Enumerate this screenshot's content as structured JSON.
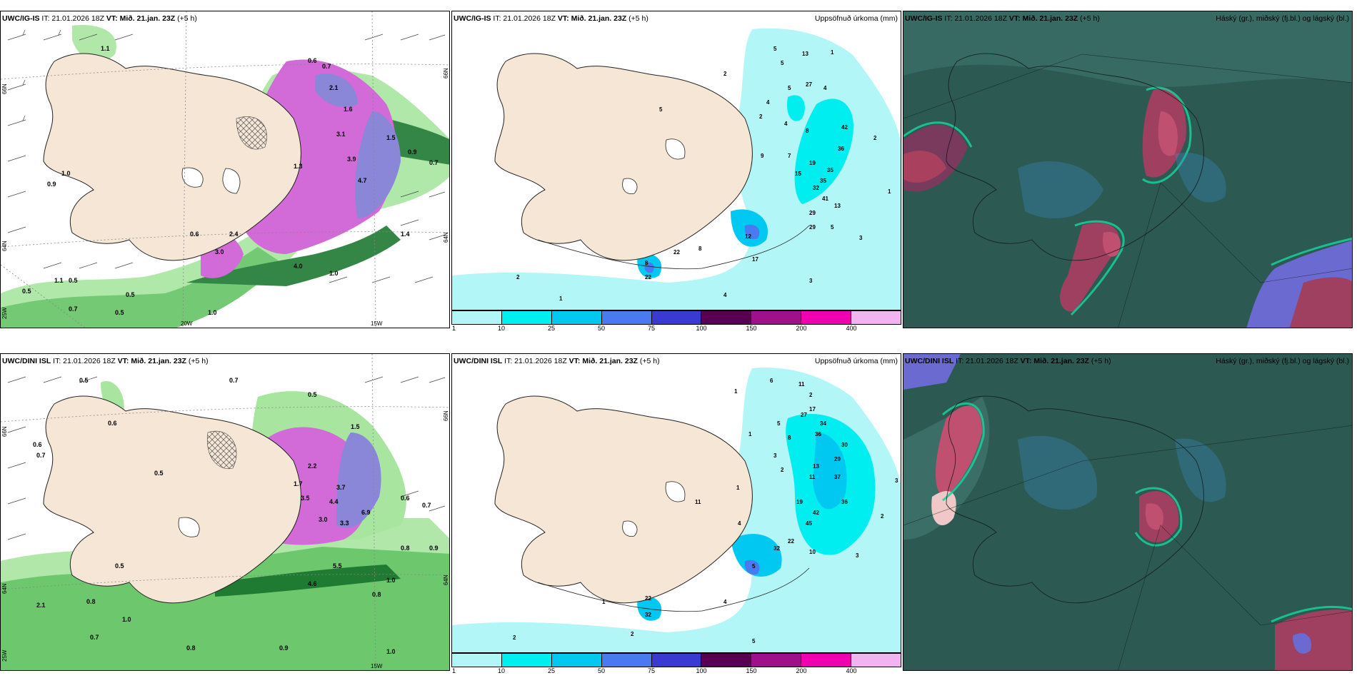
{
  "panels": [
    {
      "model": "UWC/IG-IS",
      "it": "IT: 21.01.2026 18Z",
      "vt_label": "VT:",
      "vt": "Mið. 21.jan. 23Z",
      "offset": "(+5 h)",
      "title_right": ""
    },
    {
      "model": "UWC/IG-IS",
      "it": "IT: 21.01.2026 18Z",
      "vt_label": "VT:",
      "vt": "Mið. 21.jan. 23Z",
      "offset": "(+5 h)",
      "title_right": "Uppsöfnuð úrkoma (mm)"
    },
    {
      "model": "UWC/IG-IS",
      "it": "IT: 21.01.2026 18Z",
      "vt_label": "VT:",
      "vt": "Mið. 21.jan. 23Z",
      "offset": "(+5 h)",
      "title_right": "Háský (gr.), miðský (fj.bl.) og lágský (bl.)"
    },
    {
      "model": "UWC/DINI ISL",
      "it": "IT: 21.01.2026 18Z",
      "vt_label": "VT:",
      "vt": "Mið. 21.jan. 23Z",
      "offset": "(+5 h)",
      "title_right": ""
    },
    {
      "model": "UWC/DINI ISL",
      "it": "IT: 21.01.2026 18Z",
      "vt_label": "VT:",
      "vt": "Mið. 21.jan. 23Z",
      "offset": "(+5 h)",
      "title_right": "Uppsöfnuð úrkoma (mm)"
    },
    {
      "model": "UWC/DINI ISL",
      "it": "IT: 21.01.2026 18Z",
      "vt_label": "VT:",
      "vt": "Mið. 21.jan. 23Z",
      "offset": "(+5 h)",
      "title_right": "Háský (gr.), miðský (fj.bl.) og lágský (bl.)"
    }
  ],
  "colorbar": {
    "ticks": [
      "1",
      "10",
      "25",
      "50",
      "75",
      "100",
      "150",
      "200",
      "400"
    ],
    "colors": [
      "#b3f6f8",
      "#00eef0",
      "#00c8f0",
      "#4a7af0",
      "#3a3ad0",
      "#5a0050",
      "#a0108c",
      "#f000b0",
      "#f0b4f0"
    ]
  },
  "grid_labels": {
    "top_left": {
      "lat66": "66N",
      "lat64": "64N",
      "lon25": "25W",
      "lon20": "20W",
      "lon15": "15W",
      "lat66r": "66N",
      "lat64r": "64N"
    },
    "bottom_left": {
      "lat66": "66N",
      "lat64": "64N",
      "lon25": "25W",
      "lon15": "15W",
      "lat66r": "66N",
      "lat64r": "64N"
    }
  },
  "values": {
    "p1": [
      "0.6",
      "0.7",
      "0.8",
      "0.9",
      "1.1",
      "1.0",
      "0.5",
      "0.6",
      "0.5",
      "0.7",
      "0.8",
      "0.9",
      "1.3",
      "1.6",
      "2.1",
      "3.1",
      "3.9",
      "4.7",
      "1.5",
      "1.8",
      "0.5",
      "1.0",
      "1.0",
      "0.9",
      "0.8",
      "1.1",
      "1.4",
      "0.6",
      "2.4",
      "3.0",
      "4.0",
      "1.0",
      "0.5",
      "0.7",
      "1.1"
    ],
    "p2": [
      "13",
      "5",
      "1",
      "5",
      "2",
      "5",
      "4",
      "27",
      "4",
      "2",
      "3",
      "5",
      "4",
      "8",
      "4",
      "3",
      "42",
      "36",
      "35",
      "2",
      "9",
      "7",
      "15",
      "19",
      "35",
      "32",
      "41",
      "1",
      "29",
      "13",
      "5",
      "12",
      "8",
      "22",
      "17",
      "3",
      "2",
      "4",
      "2",
      "1",
      "5"
    ],
    "p4": [
      "0.5",
      "0.7",
      "0.6",
      "1.0",
      "0.8",
      "0.9",
      "1.5",
      "2.2",
      "3.7",
      "4.4",
      "3.5",
      "5.5",
      "4.6",
      "0.5",
      "0.6",
      "0.8",
      "0.9",
      "1.0",
      "0.7",
      "0.6",
      "2.1",
      "1.0",
      "0.8",
      "0.5",
      "1.7",
      "3.0",
      "3.3",
      "6.9",
      "0.7"
    ],
    "p5": [
      "6",
      "11",
      "2",
      "1",
      "17",
      "27",
      "34",
      "36",
      "30",
      "29",
      "8",
      "1",
      "5",
      "3",
      "2",
      "13",
      "11",
      "19",
      "37",
      "36",
      "42",
      "45",
      "1",
      "4",
      "11",
      "10",
      "22",
      "32",
      "5",
      "4",
      "2",
      "3",
      "2"
    ]
  }
}
